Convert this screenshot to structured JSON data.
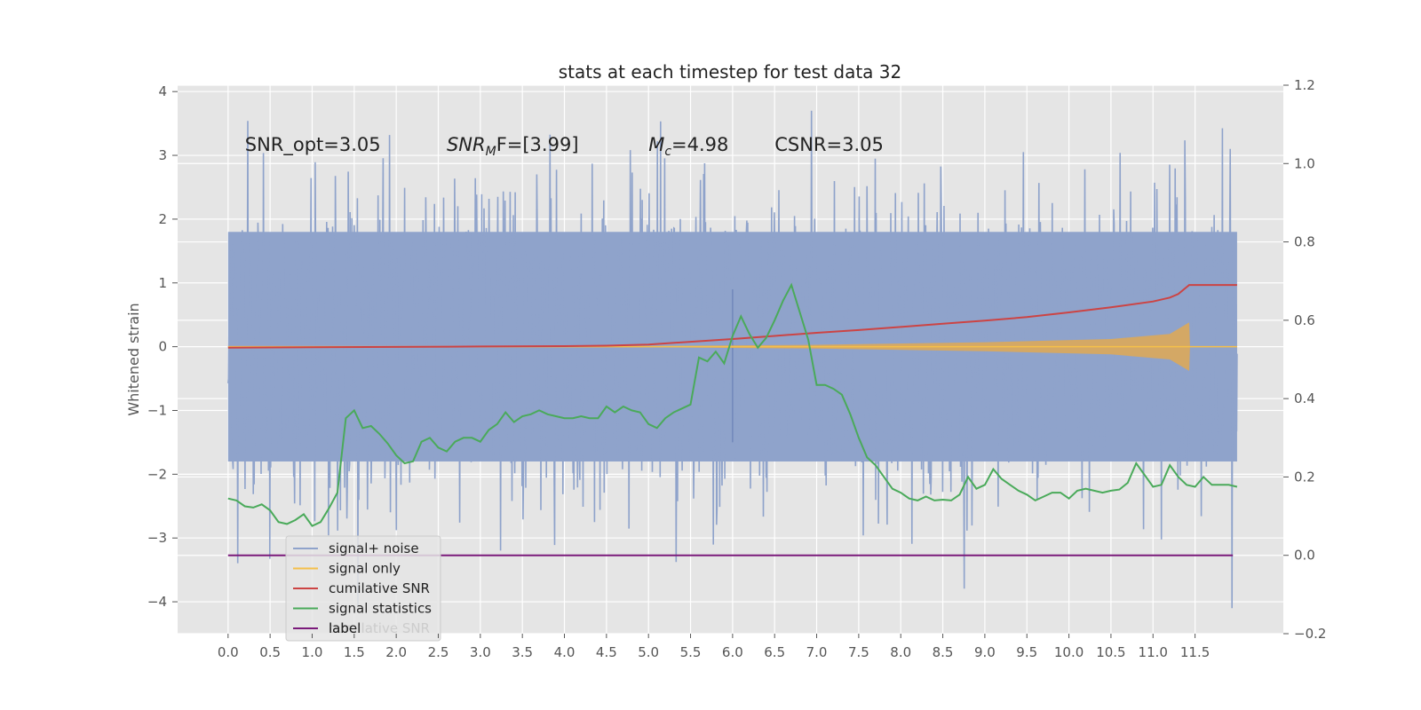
{
  "chart_data": {
    "type": "line",
    "title": "stats at each timestep for test data 32",
    "ylabel": "Whitened strain",
    "xlim": [
      -0.6,
      12.55
    ],
    "ylim": [
      -4.5,
      4.1
    ],
    "y2lim": [
      -0.2,
      1.2
    ],
    "x_ticks": [
      0.0,
      0.5,
      1.0,
      1.5,
      2.0,
      2.5,
      3.0,
      3.5,
      4.0,
      4.5,
      5.0,
      5.5,
      6.0,
      6.5,
      7.0,
      7.5,
      8.0,
      8.5,
      9.0,
      9.5,
      10.0,
      10.5,
      11.0,
      11.5
    ],
    "x_tick_labels": [
      "0.0",
      "0.5",
      "1.0",
      "1.5",
      "2.0",
      "2.5",
      "3.0",
      "3.5",
      "4.0",
      "4.5",
      "5.0",
      "5.5",
      "6.0",
      "6.5",
      "7.0",
      "7.5",
      "8.0",
      "8.5",
      "9.0",
      "9.5",
      "10.0",
      "10.5",
      "11.0",
      "11.5"
    ],
    "y_ticks": [
      -4,
      -3,
      -2,
      -1,
      0,
      1,
      2,
      3,
      4
    ],
    "y_tick_labels": [
      "−4",
      "−3",
      "−2",
      "−1",
      "0",
      "1",
      "2",
      "3",
      "4"
    ],
    "y2_ticks": [
      -0.2,
      0.0,
      0.2,
      0.4,
      0.6,
      0.8,
      1.0,
      1.2
    ],
    "y2_tick_labels": [
      "−0.2",
      "0.0",
      "0.2",
      "0.4",
      "0.6",
      "0.8",
      "1.0",
      "1.2"
    ],
    "grid": true,
    "legend_position": "lower-left",
    "annotations": [
      {
        "text": "SNR_opt=3.05",
        "x": 0.2,
        "y": 3.0
      },
      {
        "text": "SNR",
        "sub": "M",
        "after": "F=[3.99]",
        "italic_prefix": true,
        "x": 2.6,
        "y": 3.0
      },
      {
        "text": "M",
        "sub": "c",
        "after": "=4.98",
        "italic_prefix": true,
        "x": 5.0,
        "y": 3.0
      },
      {
        "text": "CSNR=3.05",
        "x": 6.5,
        "y": 3.0
      }
    ],
    "series": [
      {
        "name": "signal+ noise",
        "axis": "left",
        "color": "#8fa3cb",
        "style": "noise",
        "x_range": [
          0.0,
          12.0
        ],
        "typical_range": [
          -1.8,
          1.8
        ],
        "extreme_range": [
          -4.1,
          3.7
        ],
        "spike": {
          "x": 6.0,
          "range": [
            -1.5,
            0.9
          ]
        }
      },
      {
        "name": "signal only",
        "axis": "left",
        "color": "#f5c04a",
        "style": "chirp",
        "x_range": [
          0.0,
          12.0
        ],
        "envelope": [
          [
            0.0,
            0.0
          ],
          [
            5.0,
            0.01
          ],
          [
            7.0,
            0.03
          ],
          [
            9.0,
            0.07
          ],
          [
            10.5,
            0.12
          ],
          [
            11.2,
            0.2
          ],
          [
            11.43,
            0.38
          ],
          [
            11.44,
            0.0
          ],
          [
            12.0,
            0.0
          ]
        ]
      },
      {
        "name": "cumilative SNR",
        "axis": "right",
        "color": "#cc4444",
        "x": [
          0.0,
          1.0,
          2.0,
          3.0,
          4.0,
          4.5,
          5.0,
          5.5,
          6.0,
          6.5,
          7.0,
          7.5,
          8.0,
          8.5,
          9.0,
          9.5,
          10.0,
          10.5,
          11.0,
          11.2,
          11.3,
          11.43,
          11.6,
          12.0
        ],
        "y": [
          0.53,
          0.531,
          0.532,
          0.533,
          0.534,
          0.535,
          0.538,
          0.545,
          0.552,
          0.56,
          0.568,
          0.575,
          0.583,
          0.591,
          0.599,
          0.608,
          0.62,
          0.633,
          0.648,
          0.658,
          0.667,
          0.69,
          0.69,
          0.69
        ]
      },
      {
        "name": "signal statistics",
        "axis": "right",
        "color": "#4aaa5a",
        "x": [
          0.0,
          0.1,
          0.2,
          0.3,
          0.4,
          0.5,
          0.6,
          0.7,
          0.8,
          0.9,
          1.0,
          1.1,
          1.2,
          1.3,
          1.4,
          1.5,
          1.6,
          1.7,
          1.8,
          1.9,
          2.0,
          2.1,
          2.2,
          2.3,
          2.4,
          2.5,
          2.6,
          2.7,
          2.8,
          2.9,
          3.0,
          3.1,
          3.2,
          3.3,
          3.4,
          3.5,
          3.6,
          3.7,
          3.8,
          3.9,
          4.0,
          4.1,
          4.2,
          4.3,
          4.4,
          4.5,
          4.6,
          4.7,
          4.8,
          4.9,
          5.0,
          5.1,
          5.2,
          5.3,
          5.4,
          5.5,
          5.6,
          5.7,
          5.8,
          5.9,
          6.0,
          6.1,
          6.2,
          6.3,
          6.4,
          6.5,
          6.6,
          6.7,
          6.8,
          6.9,
          7.0,
          7.1,
          7.2,
          7.3,
          7.4,
          7.5,
          7.6,
          7.7,
          7.8,
          7.9,
          8.0,
          8.1,
          8.2,
          8.3,
          8.4,
          8.5,
          8.6,
          8.7,
          8.8,
          8.9,
          9.0,
          9.1,
          9.2,
          9.3,
          9.4,
          9.5,
          9.6,
          9.7,
          9.8,
          9.9,
          10.0,
          10.1,
          10.2,
          10.3,
          10.4,
          10.5,
          10.6,
          10.7,
          10.8,
          10.9,
          11.0,
          11.1,
          11.2,
          11.3,
          11.4,
          11.5,
          11.6,
          11.7,
          11.8,
          11.9,
          12.0
        ],
        "y": [
          0.145,
          0.14,
          0.125,
          0.122,
          0.13,
          0.115,
          0.085,
          0.08,
          0.09,
          0.105,
          0.075,
          0.085,
          0.12,
          0.16,
          0.35,
          0.37,
          0.325,
          0.33,
          0.31,
          0.285,
          0.255,
          0.235,
          0.24,
          0.29,
          0.3,
          0.275,
          0.265,
          0.29,
          0.3,
          0.3,
          0.29,
          0.32,
          0.335,
          0.365,
          0.34,
          0.355,
          0.36,
          0.37,
          0.36,
          0.355,
          0.35,
          0.35,
          0.355,
          0.35,
          0.35,
          0.38,
          0.365,
          0.38,
          0.37,
          0.365,
          0.335,
          0.325,
          0.35,
          0.365,
          0.375,
          0.385,
          0.505,
          0.495,
          0.52,
          0.49,
          0.56,
          0.61,
          0.565,
          0.53,
          0.555,
          0.6,
          0.65,
          0.69,
          0.62,
          0.55,
          0.435,
          0.435,
          0.425,
          0.41,
          0.36,
          0.3,
          0.25,
          0.23,
          0.2,
          0.17,
          0.16,
          0.145,
          0.14,
          0.15,
          0.14,
          0.142,
          0.14,
          0.155,
          0.2,
          0.17,
          0.18,
          0.22,
          0.195,
          0.18,
          0.165,
          0.155,
          0.14,
          0.15,
          0.16,
          0.16,
          0.145,
          0.165,
          0.17,
          0.165,
          0.16,
          0.165,
          0.168,
          0.185,
          0.235,
          0.205,
          0.175,
          0.18,
          0.23,
          0.2,
          0.18,
          0.175,
          0.2,
          0.18,
          0.18,
          0.18,
          0.175
        ]
      },
      {
        "name": "label",
        "axis": "right",
        "color": "#7b1a7b",
        "x": [
          0.0,
          11.95
        ],
        "y": [
          0.0,
          0.0
        ]
      }
    ],
    "legend": {
      "entries": [
        "signal+ noise",
        "signal only",
        "cumilative SNR",
        "signal statistics",
        "label"
      ],
      "ghost_text": "cumilative SNR"
    }
  }
}
